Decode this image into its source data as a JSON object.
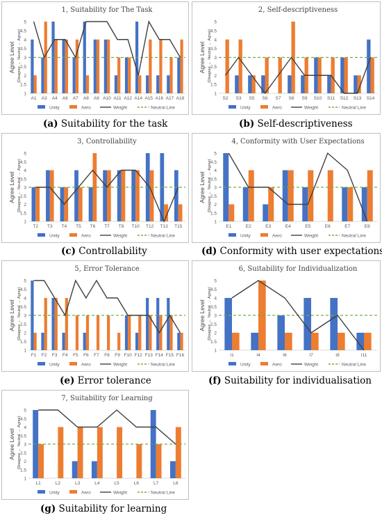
{
  "colors": {
    "unity": "#4472c4",
    "aero": "#ed7d31",
    "weight": "#404040",
    "neutral": "#70ad47",
    "axis_text": "#595959"
  },
  "common": {
    "ylabel_main": "Agree Level",
    "ylabel_scale": [
      "(Disagree",
      "←",
      "Neutral",
      "→",
      "Agree)"
    ],
    "legend": [
      "Unity",
      "Aero",
      "Weight",
      "Neutral Line"
    ],
    "ylim": [
      1,
      5
    ],
    "yticks": [
      "1",
      "1.5",
      "2",
      "2.5",
      "3",
      "3.5",
      "4",
      "4.5",
      "5"
    ],
    "neutral": 3
  },
  "captions": [
    {
      "letter": "(a)",
      "text": "Suitability for the task"
    },
    {
      "letter": "(b)",
      "text": "Self-descriptiveness"
    },
    {
      "letter": "(c)",
      "text": "Controllability"
    },
    {
      "letter": "(d)",
      "text": "Conformity with user expectations"
    },
    {
      "letter": "(e)",
      "text": "Error tolerance"
    },
    {
      "letter": "(f)",
      "text": "Suitability for individualisation"
    },
    {
      "letter": "(g)",
      "text": "Suitability for learning"
    }
  ],
  "chart_data": [
    {
      "type": "bar",
      "title": "1, Suitability  for The Task",
      "categories": [
        "A1",
        "A3",
        "A4",
        "A6",
        "A7",
        "A8",
        "A9",
        "A10",
        "A11",
        "A12",
        "A14",
        "A15",
        "A16",
        "A17",
        "A18"
      ],
      "series": [
        {
          "name": "Unity",
          "values": [
            4,
            3,
            5,
            4,
            3,
            5,
            4,
            4,
            2,
            3,
            5,
            2,
            2,
            2,
            3
          ]
        },
        {
          "name": "Aero",
          "values": [
            2,
            5,
            4,
            4,
            4,
            2,
            4,
            4,
            3,
            3,
            2,
            4,
            4,
            3,
            4
          ]
        },
        {
          "name": "Weight",
          "values": [
            5,
            3,
            4,
            4,
            3,
            5,
            5,
            5,
            4,
            4,
            2,
            5,
            4,
            4,
            3
          ]
        }
      ]
    },
    {
      "type": "bar",
      "title": "2, Self-descriptiveness",
      "categories": [
        "S2",
        "S3",
        "S5",
        "S6",
        "S7",
        "S8",
        "S9",
        "S10",
        "S11",
        "S12",
        "S13",
        "S14"
      ],
      "series": [
        {
          "name": "Unity",
          "values": [
            1,
            2,
            2,
            2,
            1,
            2,
            2,
            3,
            2,
            3,
            2,
            4
          ]
        },
        {
          "name": "Aero",
          "values": [
            4,
            4,
            2,
            3,
            3,
            5,
            3,
            3,
            3,
            3,
            2,
            3
          ]
        },
        {
          "name": "Weight",
          "values": [
            2,
            3,
            2,
            1,
            2,
            3,
            2,
            2,
            2,
            1,
            1,
            3
          ]
        }
      ]
    },
    {
      "type": "bar",
      "title": "3, Controllability",
      "categories": [
        "T2",
        "T3",
        "T4",
        "T5",
        "T6",
        "T7",
        "T8",
        "T10",
        "T12",
        "T13",
        "T15"
      ],
      "series": [
        {
          "name": "Unity",
          "values": [
            3,
            4,
            3,
            4,
            3,
            4,
            4,
            4,
            5,
            5,
            4
          ]
        },
        {
          "name": "Aero",
          "values": [
            3,
            4,
            3,
            3,
            5,
            4,
            4,
            4,
            4,
            2,
            2
          ]
        },
        {
          "name": "Weight",
          "values": [
            3,
            3,
            2,
            3,
            4,
            3,
            4,
            4,
            3,
            1,
            3
          ]
        }
      ]
    },
    {
      "type": "bar",
      "title": "4, Conformity  with User Expectations",
      "categories": [
        "E1",
        "E2",
        "E3",
        "E4",
        "E5",
        "E6",
        "E7",
        "E8"
      ],
      "series": [
        {
          "name": "Unity",
          "values": [
            5,
            3,
            2,
            4,
            3,
            1,
            3,
            3
          ]
        },
        {
          "name": "Aero",
          "values": [
            2,
            4,
            3,
            4,
            4,
            4,
            3,
            4
          ]
        },
        {
          "name": "Weight",
          "values": [
            5,
            3,
            3,
            2,
            2,
            5,
            4,
            1
          ]
        }
      ]
    },
    {
      "type": "bar",
      "title": "5, Error Tolerance",
      "categories": [
        "F1",
        "F2",
        "F3",
        "F4",
        "F5",
        "F6",
        "F7",
        "F8",
        "F9",
        "F10",
        "F12",
        "F13",
        "F14",
        "F15",
        "F16"
      ],
      "series": [
        {
          "name": "Unity",
          "values": [
            5,
            2,
            4,
            2,
            1,
            2,
            1,
            1,
            1,
            3,
            2,
            4,
            4,
            4,
            2
          ]
        },
        {
          "name": "Aero",
          "values": [
            2,
            4,
            4,
            4,
            3,
            3,
            3,
            3,
            2,
            3,
            3,
            3,
            3,
            3,
            2
          ]
        },
        {
          "name": "Weight",
          "values": [
            5,
            5,
            4,
            3,
            5,
            4,
            5,
            4,
            4,
            3,
            3,
            3,
            2,
            3,
            2
          ]
        }
      ]
    },
    {
      "type": "bar",
      "title": "6, Suitability  for Individualization",
      "categories": [
        "I1",
        "I4",
        "I6",
        "I7",
        "I8",
        "I11"
      ],
      "series": [
        {
          "name": "Unity",
          "values": [
            4,
            2,
            3,
            4,
            4,
            2
          ]
        },
        {
          "name": "Aero",
          "values": [
            2,
            5,
            2,
            2,
            2,
            2
          ]
        },
        {
          "name": "Weight",
          "values": [
            4,
            5,
            4,
            2,
            3,
            1
          ]
        }
      ]
    },
    {
      "type": "bar",
      "title": "7, Suitability  for Learning",
      "categories": [
        "L1",
        "L2",
        "L3",
        "L4",
        "L5",
        "L6",
        "L7",
        "L8"
      ],
      "series": [
        {
          "name": "Unity",
          "values": [
            5,
            1,
            2,
            2,
            1,
            1,
            5,
            2
          ]
        },
        {
          "name": "Aero",
          "values": [
            3,
            4,
            4,
            4,
            4,
            3,
            3,
            4
          ]
        },
        {
          "name": "Weight",
          "values": [
            5,
            5,
            4,
            4,
            5,
            4,
            4,
            3
          ]
        }
      ]
    }
  ]
}
